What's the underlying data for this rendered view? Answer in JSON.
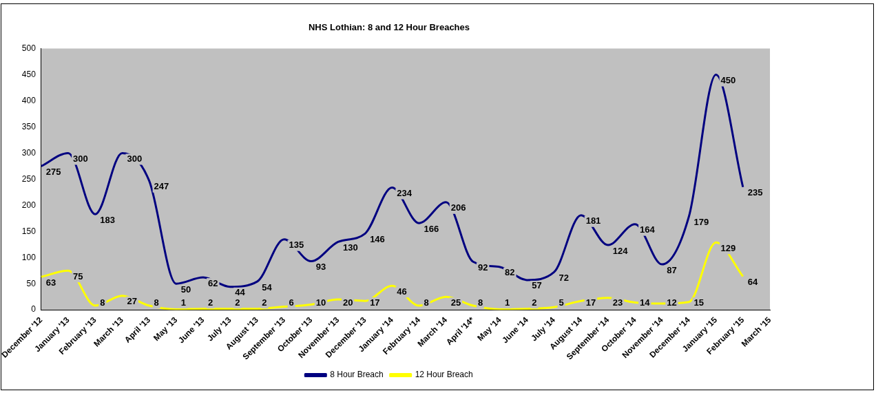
{
  "chart_data": {
    "type": "line",
    "title": "NHS Lothian: 8 and 12 Hour Breaches",
    "categories": [
      "December '12",
      "January '13",
      "February '13",
      "March '13",
      "April '13",
      "May '13",
      "June '13",
      "July '13",
      "August '13",
      "September '13",
      "October '13",
      "November '13",
      "December '13",
      "January '14",
      "February '14",
      "March '14",
      "April '14*",
      "May '14",
      "June '14",
      "July '14",
      "August '14",
      "September '14",
      "October '14",
      "November '14",
      "December '14",
      "January '15",
      "February '15",
      "March '15"
    ],
    "series": [
      {
        "name": "8 Hour Breach",
        "color": "#000080",
        "values": [
          275,
          300,
          183,
          300,
          247,
          50,
          62,
          44,
          54,
          135,
          93,
          130,
          146,
          234,
          166,
          206,
          92,
          82,
          57,
          72,
          181,
          124,
          164,
          87,
          179,
          450,
          235,
          null
        ]
      },
      {
        "name": "12 Hour Breach",
        "color": "#ffff00",
        "values": [
          63,
          75,
          8,
          27,
          8,
          1,
          2,
          2,
          2,
          6,
          10,
          20,
          17,
          46,
          8,
          25,
          8,
          1,
          2,
          5,
          17,
          23,
          14,
          12,
          15,
          129,
          64,
          null
        ]
      }
    ],
    "ylim": [
      0,
      500
    ],
    "yticks": [
      0,
      50,
      100,
      150,
      200,
      250,
      300,
      350,
      400,
      450,
      500
    ],
    "grid": false,
    "legend": "bottom",
    "marker": "none",
    "line_style": "solid",
    "data_labels": true
  }
}
